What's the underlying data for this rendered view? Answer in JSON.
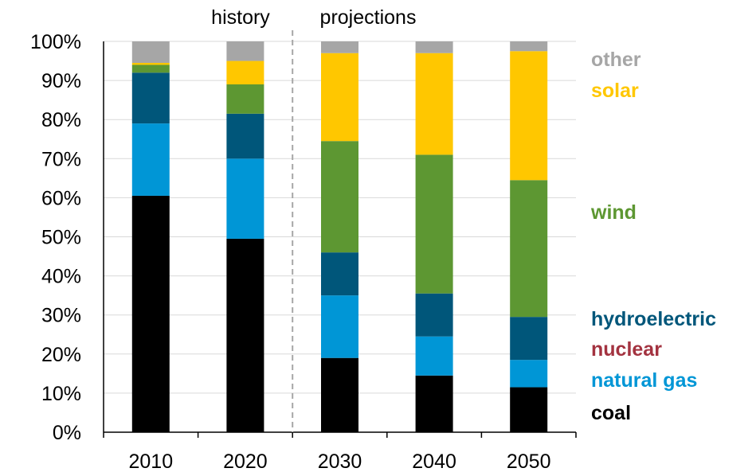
{
  "chart_data": {
    "type": "bar",
    "stacked": true,
    "percent": true,
    "categories": [
      "2010",
      "2020",
      "2030",
      "2040",
      "2050"
    ],
    "ylim": [
      0,
      100
    ],
    "y_ticks": [
      "0%",
      "10%",
      "20%",
      "30%",
      "40%",
      "50%",
      "60%",
      "70%",
      "80%",
      "90%",
      "100%"
    ],
    "period_labels": {
      "history": "history",
      "projections": "projections"
    },
    "divider_after_category": "2020",
    "grid": true,
    "legend_position": "right",
    "series": [
      {
        "name": "coal",
        "color": "#000000",
        "values": [
          60.5,
          49.5,
          19.0,
          14.5,
          11.5
        ]
      },
      {
        "name": "natural gas",
        "color": "#0096D6",
        "values": [
          18.5,
          20.5,
          16.0,
          10.0,
          7.0
        ]
      },
      {
        "name": "nuclear",
        "color": "#A33340",
        "values": [
          0,
          0,
          0,
          0,
          0
        ]
      },
      {
        "name": "hydroelectric",
        "color": "#00567A",
        "values": [
          13.0,
          11.5,
          11.0,
          11.0,
          11.0
        ]
      },
      {
        "name": "wind",
        "color": "#5D9732",
        "values": [
          2.0,
          7.5,
          28.5,
          35.5,
          35.0
        ]
      },
      {
        "name": "solar",
        "color": "#FFC700",
        "values": [
          0.5,
          6.0,
          22.5,
          26.0,
          33.0
        ]
      },
      {
        "name": "other",
        "color": "#A6A6A6",
        "values": [
          5.5,
          5.0,
          3.0,
          3.0,
          2.5
        ]
      }
    ]
  },
  "legend": [
    {
      "label": "other",
      "color": "#A6A6A6"
    },
    {
      "label": "solar",
      "color": "#FFC700"
    },
    {
      "label": "wind",
      "color": "#5D9732"
    },
    {
      "label": "hydroelectric",
      "color": "#00567A"
    },
    {
      "label": "nuclear",
      "color": "#A33340"
    },
    {
      "label": "natural gas",
      "color": "#0096D6"
    },
    {
      "label": "coal",
      "color": "#000000"
    }
  ]
}
